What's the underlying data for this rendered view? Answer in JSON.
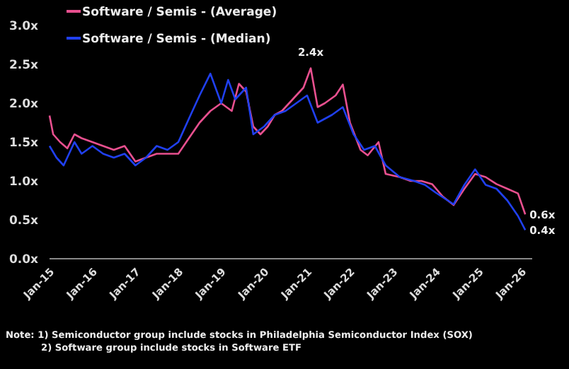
{
  "chart_data": {
    "type": "line",
    "xlim": [
      "2015-01",
      "2026-04"
    ],
    "ylim": [
      0,
      3
    ],
    "yticks": [
      {
        "value": 0,
        "label": "0.0x"
      },
      {
        "value": 0.5,
        "label": "0.5x"
      },
      {
        "value": 1,
        "label": "1.0x"
      },
      {
        "value": 1.5,
        "label": "1.5x"
      },
      {
        "value": 2,
        "label": "2.0x"
      },
      {
        "value": 2.5,
        "label": "2.5x"
      },
      {
        "value": 3,
        "label": "3.0x"
      }
    ],
    "xticks": [
      {
        "value": "2015-01",
        "label": "Jan-15"
      },
      {
        "value": "2016-01",
        "label": "Jan-16"
      },
      {
        "value": "2017-01",
        "label": "Jan-17"
      },
      {
        "value": "2018-01",
        "label": "Jan-18"
      },
      {
        "value": "2019-01",
        "label": "Jan-19"
      },
      {
        "value": "2020-01",
        "label": "Jan-20"
      },
      {
        "value": "2021-01",
        "label": "Jan-21"
      },
      {
        "value": "2022-01",
        "label": "Jan-22"
      },
      {
        "value": "2023-01",
        "label": "Jan-23"
      },
      {
        "value": "2024-01",
        "label": "Jan-24"
      },
      {
        "value": "2025-01",
        "label": "Jan-25"
      },
      {
        "value": "2026-01",
        "label": "Jan-26"
      }
    ],
    "legend": "top left",
    "grid": false,
    "series": [
      {
        "name": "Software / Semis - (Average)",
        "color": "#e8508f",
        "x": [
          "2015-01",
          "2015-02",
          "2015-04",
          "2015-06",
          "2015-08",
          "2015-10",
          "2016-01",
          "2016-04",
          "2016-07",
          "2016-10",
          "2017-01",
          "2017-04",
          "2017-07",
          "2017-10",
          "2018-01",
          "2018-04",
          "2018-07",
          "2018-10",
          "2019-01",
          "2019-04",
          "2019-06",
          "2019-08",
          "2019-10",
          "2019-12",
          "2020-02",
          "2020-04",
          "2020-06",
          "2020-08",
          "2020-10",
          "2020-12",
          "2021-02",
          "2021-04",
          "2021-06",
          "2021-09",
          "2021-11",
          "2022-01",
          "2022-04",
          "2022-06",
          "2022-09",
          "2022-11",
          "2023-03",
          "2023-06",
          "2023-09",
          "2023-12",
          "2024-03",
          "2024-06",
          "2024-09",
          "2024-12",
          "2025-03",
          "2025-06",
          "2025-09",
          "2025-12",
          "2026-02"
        ],
        "values": [
          1.84,
          1.6,
          1.5,
          1.42,
          1.6,
          1.55,
          1.5,
          1.45,
          1.4,
          1.45,
          1.25,
          1.3,
          1.35,
          1.35,
          1.35,
          1.55,
          1.75,
          1.9,
          2.0,
          1.9,
          2.25,
          2.15,
          1.7,
          1.6,
          1.7,
          1.85,
          1.9,
          2.0,
          2.1,
          2.2,
          2.45,
          1.95,
          2.0,
          2.1,
          2.24,
          1.75,
          1.4,
          1.33,
          1.5,
          1.09,
          1.05,
          1.0,
          1.0,
          0.96,
          0.8,
          0.69,
          0.9,
          1.09,
          1.05,
          0.96,
          0.9,
          0.84,
          0.57
        ],
        "value_labels": [
          null,
          null,
          null,
          null,
          null,
          null,
          null,
          null,
          null,
          null,
          null,
          null,
          null,
          null,
          null,
          null,
          null,
          null,
          null,
          null,
          null,
          null,
          null,
          null,
          null,
          null,
          null,
          null,
          null,
          null,
          null,
          null,
          null,
          null,
          null,
          null,
          null,
          null,
          null,
          null,
          null,
          null,
          null,
          null,
          null,
          null,
          null,
          null,
          null,
          null,
          null,
          null,
          "0.6x"
        ]
      },
      {
        "name": "Software / Semis - (Median)",
        "color": "#2040f0",
        "x": [
          "2015-01",
          "2015-03",
          "2015-05",
          "2015-08",
          "2015-10",
          "2016-01",
          "2016-04",
          "2016-07",
          "2016-10",
          "2017-01",
          "2017-04",
          "2017-07",
          "2017-10",
          "2018-01",
          "2018-04",
          "2018-07",
          "2018-10",
          "2019-01",
          "2019-03",
          "2019-05",
          "2019-08",
          "2019-10",
          "2020-01",
          "2020-04",
          "2020-07",
          "2020-10",
          "2021-01",
          "2021-04",
          "2021-08",
          "2021-11",
          "2022-02",
          "2022-05",
          "2022-08",
          "2022-11",
          "2023-03",
          "2023-07",
          "2023-10",
          "2024-01",
          "2024-06",
          "2024-09",
          "2024-12",
          "2025-03",
          "2025-06",
          "2025-09",
          "2025-12",
          "2026-02"
        ],
        "values": [
          1.45,
          1.3,
          1.2,
          1.5,
          1.35,
          1.45,
          1.35,
          1.3,
          1.35,
          1.2,
          1.3,
          1.45,
          1.4,
          1.5,
          1.8,
          2.1,
          2.38,
          2.0,
          2.3,
          2.05,
          2.2,
          1.6,
          1.7,
          1.85,
          1.9,
          2.0,
          2.1,
          1.75,
          1.85,
          1.95,
          1.6,
          1.4,
          1.45,
          1.2,
          1.05,
          1.0,
          0.95,
          0.85,
          0.7,
          0.95,
          1.15,
          0.95,
          0.9,
          0.75,
          0.55,
          0.37
        ],
        "value_labels": [
          null,
          null,
          null,
          null,
          null,
          null,
          null,
          null,
          null,
          null,
          null,
          null,
          null,
          null,
          null,
          null,
          null,
          null,
          null,
          null,
          null,
          null,
          null,
          null,
          null,
          null,
          null,
          null,
          null,
          null,
          null,
          null,
          null,
          null,
          null,
          null,
          null,
          null,
          null,
          null,
          null,
          null,
          null,
          null,
          null,
          "0.4x"
        ]
      }
    ],
    "annotations": [
      {
        "text": "2.4x",
        "x": "2021-02",
        "y": 2.45
      },
      "Note: 1) Semiconductor group include stocks in Philadelphia Semiconductor Index (SOX)",
      "2) Software group include stocks in Software ETF"
    ]
  }
}
